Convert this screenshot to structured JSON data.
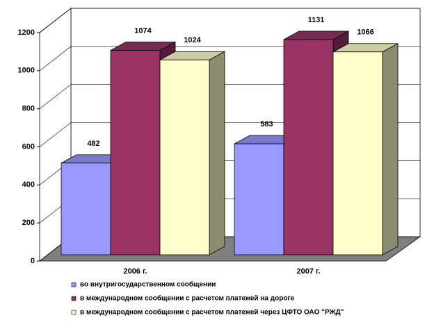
{
  "chart_data": {
    "type": "bar",
    "categories": [
      "2006 г.",
      "2007 г."
    ],
    "series": [
      {
        "name": "во внутригосударственном сообщении",
        "color": "#9999ff",
        "values": [
          482,
          583
        ]
      },
      {
        "name": "в международном сообщении с расчетом платежей на дороге",
        "color": "#993366",
        "values": [
          1074,
          1131
        ]
      },
      {
        "name": "в международном сообщении с расчетом платежей через ЦФТО ОАО \"РЖД\"",
        "color": "#ffffcc",
        "values": [
          1024,
          1066
        ]
      }
    ],
    "ylim": [
      0,
      1200
    ],
    "yticks": [
      0,
      200,
      400,
      600,
      800,
      1000,
      1200
    ],
    "grid": true
  }
}
